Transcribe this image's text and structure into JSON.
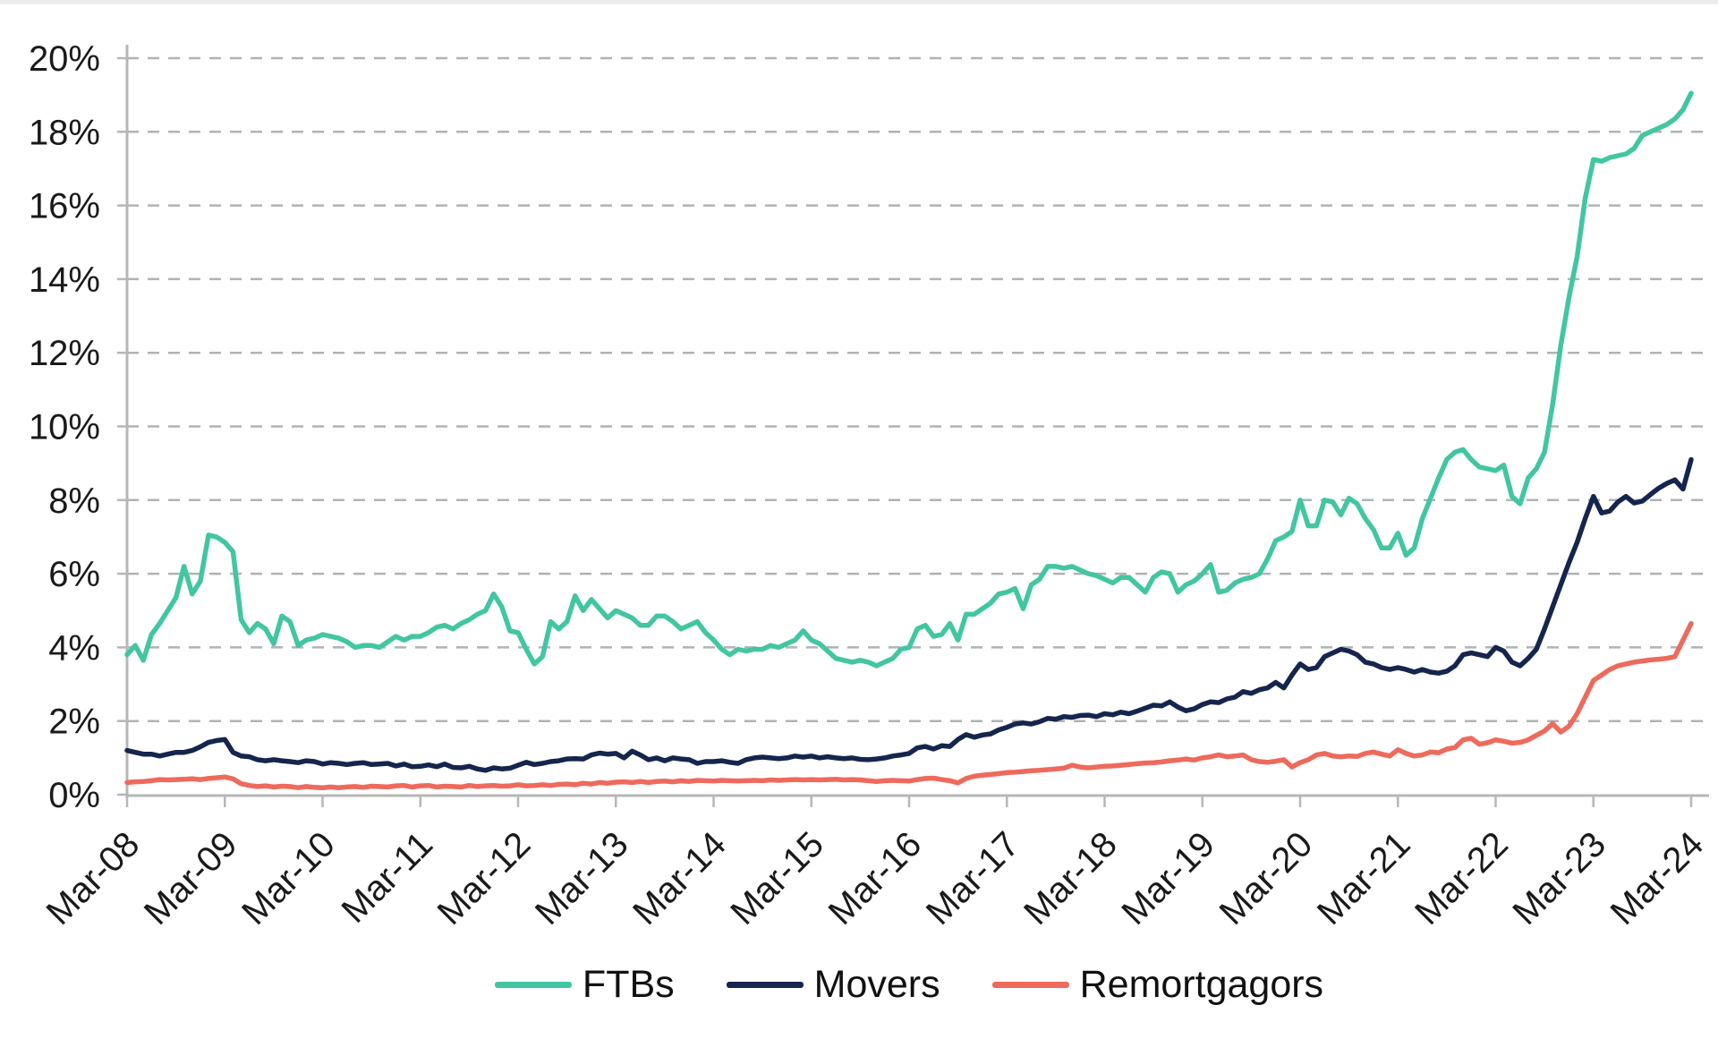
{
  "chart_data": {
    "type": "line",
    "title": "",
    "xlabel": "",
    "ylabel": "",
    "x_frequency": "monthly",
    "x_start": "Mar-08",
    "x_end": "Mar-24",
    "x_tick_labels": [
      "Mar-08",
      "Mar-09",
      "Mar-10",
      "Mar-11",
      "Mar-12",
      "Mar-13",
      "Mar-14",
      "Mar-15",
      "Mar-16",
      "Mar-17",
      "Mar-18",
      "Mar-19",
      "Mar-20",
      "Mar-21",
      "Mar-22",
      "Mar-23",
      "Mar-24"
    ],
    "y_tick_labels": [
      "0%",
      "2%",
      "4%",
      "6%",
      "8%",
      "10%",
      "12%",
      "14%",
      "16%",
      "18%",
      "20%"
    ],
    "ylim": [
      0,
      20
    ],
    "grid": "horizontal-dashed",
    "legend_position": "bottom-center",
    "colors": {
      "grid": "#afb3b5",
      "axis": "#b7b7b7",
      "text": "#1a1a1a",
      "background": "#ffffff"
    },
    "series": [
      {
        "name": "FTBs",
        "color": "#42c6a1",
        "values": [
          3.8,
          4.05,
          3.65,
          4.35,
          4.65,
          5.0,
          5.35,
          6.2,
          5.45,
          5.8,
          7.05,
          7.0,
          6.85,
          6.6,
          4.75,
          4.4,
          4.65,
          4.5,
          4.1,
          4.85,
          4.7,
          4.05,
          4.2,
          4.25,
          4.35,
          4.3,
          4.25,
          4.15,
          4.0,
          4.05,
          4.05,
          4.0,
          4.15,
          4.3,
          4.2,
          4.3,
          4.3,
          4.4,
          4.55,
          4.6,
          4.5,
          4.65,
          4.75,
          4.9,
          5.0,
          5.45,
          5.1,
          4.45,
          4.4,
          3.95,
          3.55,
          3.75,
          4.7,
          4.5,
          4.7,
          5.4,
          5.0,
          5.3,
          5.05,
          4.8,
          5.0,
          4.9,
          4.8,
          4.6,
          4.6,
          4.85,
          4.85,
          4.7,
          4.5,
          4.6,
          4.7,
          4.4,
          4.2,
          3.95,
          3.8,
          3.95,
          3.9,
          3.95,
          3.95,
          4.05,
          4.0,
          4.1,
          4.2,
          4.45,
          4.2,
          4.1,
          3.9,
          3.7,
          3.65,
          3.6,
          3.65,
          3.6,
          3.5,
          3.6,
          3.7,
          3.95,
          4.0,
          4.5,
          4.6,
          4.3,
          4.35,
          4.65,
          4.2,
          4.9,
          4.9,
          5.05,
          5.2,
          5.45,
          5.5,
          5.6,
          5.05,
          5.7,
          5.85,
          6.2,
          6.2,
          6.15,
          6.2,
          6.1,
          6.0,
          5.95,
          5.85,
          5.75,
          5.9,
          5.9,
          5.7,
          5.5,
          5.9,
          6.05,
          6.0,
          5.5,
          5.7,
          5.8,
          6.0,
          6.25,
          5.5,
          5.55,
          5.75,
          5.85,
          5.9,
          6.0,
          6.4,
          6.9,
          7.0,
          7.15,
          8.0,
          7.3,
          7.3,
          8.0,
          7.95,
          7.6,
          8.05,
          7.9,
          7.5,
          7.2,
          6.7,
          6.7,
          7.1,
          6.5,
          6.7,
          7.5,
          8.05,
          8.6,
          9.1,
          9.3,
          9.37,
          9.1,
          8.9,
          8.85,
          8.8,
          8.95,
          8.1,
          7.9,
          8.6,
          8.85,
          9.3,
          10.6,
          12.2,
          13.5,
          14.6,
          16.2,
          17.25,
          17.2,
          17.3,
          17.35,
          17.4,
          17.55,
          17.9,
          18.0,
          18.1,
          18.2,
          18.35,
          18.6,
          19.05
        ]
      },
      {
        "name": "Movers",
        "color": "#16254e",
        "values": [
          1.2,
          1.15,
          1.1,
          1.1,
          1.05,
          1.1,
          1.15,
          1.15,
          1.2,
          1.3,
          1.42,
          1.47,
          1.5,
          1.15,
          1.05,
          1.03,
          0.95,
          0.92,
          0.95,
          0.92,
          0.9,
          0.87,
          0.92,
          0.9,
          0.83,
          0.87,
          0.85,
          0.82,
          0.85,
          0.87,
          0.82,
          0.83,
          0.85,
          0.78,
          0.83,
          0.76,
          0.77,
          0.81,
          0.76,
          0.83,
          0.74,
          0.73,
          0.77,
          0.7,
          0.66,
          0.73,
          0.7,
          0.72,
          0.8,
          0.88,
          0.82,
          0.85,
          0.9,
          0.92,
          0.97,
          0.98,
          0.97,
          1.08,
          1.13,
          1.1,
          1.12,
          1.0,
          1.18,
          1.08,
          0.95,
          1.0,
          0.92,
          1.0,
          0.97,
          0.95,
          0.85,
          0.9,
          0.9,
          0.92,
          0.88,
          0.85,
          0.95,
          1.0,
          1.02,
          1.0,
          0.98,
          1.0,
          1.05,
          1.02,
          1.05,
          1.0,
          1.03,
          1.0,
          0.98,
          1.0,
          0.96,
          0.95,
          0.97,
          1.0,
          1.05,
          1.08,
          1.12,
          1.27,
          1.31,
          1.24,
          1.33,
          1.31,
          1.5,
          1.63,
          1.56,
          1.62,
          1.65,
          1.76,
          1.83,
          1.92,
          1.95,
          1.92,
          1.98,
          2.07,
          2.05,
          2.12,
          2.1,
          2.15,
          2.16,
          2.12,
          2.2,
          2.17,
          2.24,
          2.2,
          2.27,
          2.35,
          2.43,
          2.41,
          2.52,
          2.38,
          2.28,
          2.33,
          2.45,
          2.52,
          2.5,
          2.6,
          2.65,
          2.8,
          2.75,
          2.85,
          2.9,
          3.05,
          2.9,
          3.25,
          3.55,
          3.4,
          3.45,
          3.75,
          3.85,
          3.95,
          3.9,
          3.8,
          3.6,
          3.55,
          3.45,
          3.4,
          3.45,
          3.4,
          3.33,
          3.4,
          3.33,
          3.3,
          3.35,
          3.5,
          3.8,
          3.85,
          3.8,
          3.75,
          4.0,
          3.9,
          3.6,
          3.5,
          3.7,
          3.95,
          4.5,
          5.1,
          5.7,
          6.3,
          6.85,
          7.5,
          8.1,
          7.65,
          7.7,
          7.95,
          8.1,
          7.92,
          7.97,
          8.15,
          8.32,
          8.45,
          8.55,
          8.3,
          9.1
        ]
      },
      {
        "name": "Remortgagors",
        "color": "#ee6a5c",
        "values": [
          0.33,
          0.35,
          0.36,
          0.38,
          0.41,
          0.4,
          0.41,
          0.42,
          0.43,
          0.41,
          0.44,
          0.46,
          0.48,
          0.43,
          0.3,
          0.25,
          0.22,
          0.24,
          0.21,
          0.23,
          0.22,
          0.19,
          0.22,
          0.2,
          0.19,
          0.21,
          0.19,
          0.21,
          0.22,
          0.2,
          0.23,
          0.22,
          0.21,
          0.24,
          0.25,
          0.21,
          0.24,
          0.25,
          0.21,
          0.23,
          0.22,
          0.21,
          0.25,
          0.22,
          0.24,
          0.25,
          0.23,
          0.24,
          0.27,
          0.24,
          0.25,
          0.27,
          0.25,
          0.28,
          0.29,
          0.27,
          0.31,
          0.29,
          0.33,
          0.31,
          0.34,
          0.35,
          0.33,
          0.36,
          0.33,
          0.36,
          0.37,
          0.35,
          0.38,
          0.36,
          0.39,
          0.38,
          0.37,
          0.39,
          0.38,
          0.37,
          0.38,
          0.39,
          0.38,
          0.4,
          0.39,
          0.4,
          0.41,
          0.4,
          0.41,
          0.4,
          0.41,
          0.42,
          0.4,
          0.41,
          0.4,
          0.38,
          0.36,
          0.38,
          0.39,
          0.38,
          0.37,
          0.41,
          0.44,
          0.45,
          0.41,
          0.38,
          0.32,
          0.44,
          0.5,
          0.53,
          0.55,
          0.57,
          0.6,
          0.61,
          0.63,
          0.65,
          0.66,
          0.68,
          0.7,
          0.72,
          0.8,
          0.75,
          0.73,
          0.75,
          0.77,
          0.78,
          0.8,
          0.82,
          0.84,
          0.86,
          0.87,
          0.89,
          0.92,
          0.94,
          0.97,
          0.94,
          1.0,
          1.03,
          1.08,
          1.03,
          1.05,
          1.08,
          0.95,
          0.9,
          0.88,
          0.91,
          0.95,
          0.75,
          0.87,
          0.95,
          1.08,
          1.12,
          1.05,
          1.03,
          1.05,
          1.04,
          1.12,
          1.16,
          1.1,
          1.05,
          1.22,
          1.12,
          1.05,
          1.08,
          1.16,
          1.14,
          1.24,
          1.28,
          1.49,
          1.53,
          1.37,
          1.41,
          1.49,
          1.45,
          1.4,
          1.42,
          1.49,
          1.61,
          1.73,
          1.93,
          1.7,
          1.86,
          2.2,
          2.65,
          3.1,
          3.25,
          3.4,
          3.5,
          3.55,
          3.6,
          3.63,
          3.66,
          3.68,
          3.7,
          3.75,
          4.2,
          4.65
        ]
      }
    ]
  }
}
